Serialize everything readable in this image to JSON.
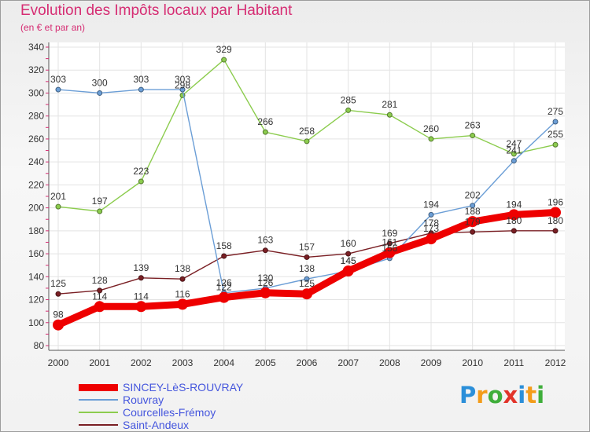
{
  "header": {
    "title": "Evolution des Impôts locaux par Habitant",
    "subtitle": "(en € et par an)"
  },
  "brand": {
    "letters": [
      "P",
      "r",
      "o",
      "x",
      "i",
      "t",
      "i"
    ],
    "colors": [
      "#2b8fd9",
      "#f39c1a",
      "#3fae3b",
      "#e2342a",
      "#2b8fd9",
      "#f39c1a",
      "#3fae3b"
    ]
  },
  "chart_data": {
    "type": "line",
    "x": [
      "2000",
      "2001",
      "2002",
      "2003",
      "2004",
      "2005",
      "2006",
      "2007",
      "2008",
      "2009",
      "2010",
      "2011",
      "2012"
    ],
    "ylim": [
      80,
      340
    ],
    "yticks": [
      "80",
      "100",
      "120",
      "140",
      "160",
      "180",
      "200",
      "220",
      "240",
      "260",
      "280",
      "300",
      "320",
      "340"
    ],
    "grid": true,
    "legend_position": "bottom-left",
    "series": [
      {
        "name": "Saint-Andeux",
        "color": "#7a1f24",
        "values": [
          125,
          128,
          139,
          138,
          158,
          163,
          157,
          160,
          169,
          178,
          179,
          180,
          180
        ],
        "labels": [
          "125",
          "128",
          "139",
          "138",
          "158",
          "163",
          "157",
          "160",
          "169",
          "178",
          "179",
          "180",
          "180"
        ]
      },
      {
        "name": "Courcelles-Frémoy",
        "color": "#8ccc4e",
        "values": [
          201,
          197,
          223,
          298,
          329,
          266,
          258,
          285,
          281,
          260,
          263,
          247,
          255
        ],
        "labels": [
          "201",
          "197",
          "223",
          "298",
          "329",
          "266",
          "258",
          "285",
          "281",
          "260",
          "263",
          "247",
          "255"
        ]
      },
      {
        "name": "Rouvray",
        "color": "#6b9ed6",
        "values": [
          303,
          300,
          303,
          303,
          126,
          130,
          138,
          145,
          156,
          194,
          202,
          241,
          275
        ],
        "labels": [
          "303",
          "300",
          "303",
          "303",
          "126",
          "130",
          "138",
          "145",
          "156",
          "194",
          "202",
          "241",
          "275"
        ]
      },
      {
        "name": "SINCEY-LèS-ROUVRAY",
        "color": "#ee0000",
        "values": [
          98,
          114,
          114,
          116,
          122,
          126,
          125,
          145,
          161,
          173,
          188,
          194,
          196
        ],
        "labels": [
          "98",
          "114",
          "114",
          "116",
          "122",
          "126",
          "125",
          "145",
          "161",
          "173",
          "188",
          "194",
          "196"
        ]
      }
    ],
    "legend_order": [
      "SINCEY-LèS-ROUVRAY",
      "Rouvray",
      "Courcelles-Frémoy",
      "Saint-Andeux"
    ]
  }
}
